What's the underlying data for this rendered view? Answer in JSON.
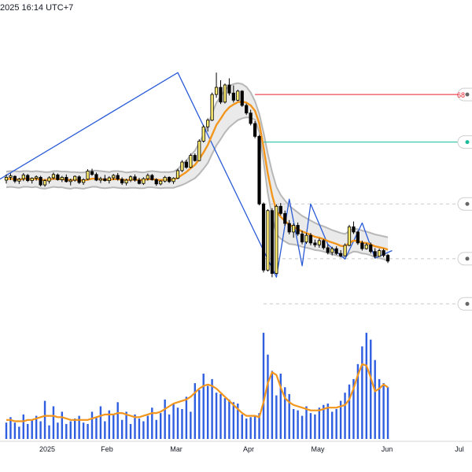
{
  "header": {
    "timestamp": "2025 16:14 UTC+7"
  },
  "colors": {
    "up_candle": "#fdeb6e",
    "down_candle": "#000000",
    "candle_outline": "#000000",
    "ma_line": "#f2961d",
    "band_fill": "#e3e3e3",
    "band_edge": "#b7b7b7",
    "zigzag": "#2a5bd7",
    "volume_bar": "#2f5fe0",
    "red_level": "#e8222d",
    "teal_level": "#1abc9c",
    "dashed_level": "#c8c8c8",
    "axis_text": "#131722"
  },
  "chart_data": [
    {
      "type": "candlestick",
      "title": "",
      "x_ticks": [
        "2025",
        "Feb",
        "Mar",
        "Apr",
        "May",
        "Jun",
        "Jul"
      ],
      "grid": false,
      "price_labels_visible": [
        "68"
      ],
      "ohlc": [
        [
          100,
          101.2,
          99.3,
          100.6
        ],
        [
          100.6,
          101.4,
          100.0,
          100.9
        ],
        [
          100.8,
          101.0,
          99.4,
          99.8
        ],
        [
          99.8,
          100.5,
          99.2,
          100.2
        ],
        [
          100.3,
          101.5,
          99.8,
          101.1
        ],
        [
          101.0,
          101.3,
          99.6,
          99.9
        ],
        [
          99.9,
          100.6,
          99.3,
          100.4
        ],
        [
          100.4,
          101.0,
          99.9,
          100.7
        ],
        [
          100.6,
          100.9,
          98.7,
          99.0
        ],
        [
          99.0,
          100.2,
          98.6,
          99.9
        ],
        [
          99.8,
          100.8,
          99.3,
          100.5
        ],
        [
          100.5,
          101.6,
          100.1,
          101.2
        ],
        [
          101.1,
          101.4,
          99.9,
          100.1
        ],
        [
          100.1,
          100.9,
          99.6,
          100.6
        ],
        [
          100.6,
          101.2,
          99.5,
          99.7
        ],
        [
          99.7,
          100.3,
          98.9,
          100.0
        ],
        [
          100.0,
          101.0,
          99.7,
          100.8
        ],
        [
          100.7,
          101.0,
          99.2,
          99.5
        ],
        [
          99.5,
          100.4,
          99.0,
          100.1
        ],
        [
          100.2,
          102.3,
          100.0,
          101.9
        ],
        [
          101.8,
          102.4,
          100.9,
          101.2
        ],
        [
          101.2,
          101.6,
          99.8,
          100.0
        ],
        [
          100.0,
          100.7,
          99.4,
          100.3
        ],
        [
          100.3,
          101.1,
          99.7,
          99.9
        ],
        [
          99.9,
          100.8,
          99.3,
          100.5
        ],
        [
          100.5,
          101.3,
          100.0,
          101.0
        ],
        [
          101.0,
          101.5,
          99.9,
          100.2
        ],
        [
          100.2,
          100.6,
          99.0,
          99.4
        ],
        [
          99.4,
          100.3,
          98.9,
          100.0
        ],
        [
          100.0,
          101.0,
          99.6,
          100.7
        ],
        [
          100.7,
          101.2,
          99.7,
          100.0
        ],
        [
          100.0,
          100.5,
          99.1,
          99.3
        ],
        [
          99.3,
          100.6,
          99.0,
          100.3
        ],
        [
          100.3,
          101.4,
          99.9,
          101.0
        ],
        [
          101.0,
          101.3,
          99.9,
          100.1
        ],
        [
          100.1,
          100.4,
          98.8,
          99.2
        ],
        [
          99.2,
          100.0,
          98.9,
          99.8
        ],
        [
          99.8,
          100.9,
          99.5,
          100.6
        ],
        [
          100.6,
          100.8,
          99.4,
          99.7
        ],
        [
          99.7,
          100.6,
          99.2,
          100.4
        ],
        [
          100.4,
          102.4,
          100.2,
          102.0
        ],
        [
          102.0,
          104.2,
          101.7,
          103.8
        ],
        [
          103.8,
          104.3,
          102.4,
          102.7
        ],
        [
          102.7,
          105.6,
          102.5,
          105.2
        ],
        [
          105.2,
          105.6,
          103.9,
          104.1
        ],
        [
          104.1,
          108.6,
          104.0,
          108.2
        ],
        [
          108.2,
          111.6,
          107.9,
          111.2
        ],
        [
          111.2,
          113.0,
          110.2,
          112.6
        ],
        [
          112.6,
          118.4,
          112.4,
          118.0
        ],
        [
          118.0,
          122.6,
          117.3,
          119.5
        ],
        [
          119.5,
          121.0,
          116.0,
          116.4
        ],
        [
          116.4,
          120.3,
          116.1,
          120.0
        ],
        [
          120.0,
          121.4,
          117.8,
          118.3
        ],
        [
          118.3,
          119.9,
          116.3,
          116.8
        ],
        [
          116.8,
          119.0,
          116.6,
          118.7
        ],
        [
          118.7,
          118.9,
          115.4,
          115.7
        ],
        [
          115.7,
          116.1,
          113.7,
          114.1
        ],
        [
          114.1,
          114.8,
          111.5,
          111.9
        ],
        [
          111.9,
          112.4,
          108.8,
          109.2
        ],
        [
          109.2,
          109.5,
          94.7,
          95.0
        ],
        [
          95.0,
          95.3,
          80.6,
          81.1
        ],
        [
          81.1,
          93.9,
          80.8,
          93.6
        ],
        [
          93.6,
          94.1,
          79.6,
          80.4
        ],
        [
          80.4,
          94.9,
          80.2,
          94.5
        ],
        [
          94.5,
          95.2,
          92.6,
          93.0
        ],
        [
          93.0,
          93.6,
          90.4,
          90.9
        ],
        [
          90.9,
          91.6,
          88.6,
          89.1
        ],
        [
          89.1,
          90.9,
          87.9,
          90.5
        ],
        [
          90.5,
          91.1,
          88.3,
          88.7
        ],
        [
          88.7,
          89.4,
          86.5,
          87.0
        ],
        [
          87.0,
          88.9,
          86.6,
          88.4
        ],
        [
          88.4,
          88.9,
          86.3,
          86.8
        ],
        [
          86.8,
          87.5,
          85.9,
          86.4
        ],
        [
          86.4,
          87.8,
          85.8,
          87.3
        ],
        [
          87.3,
          87.6,
          85.4,
          85.8
        ],
        [
          85.8,
          86.5,
          84.4,
          84.8
        ],
        [
          84.8,
          86.0,
          84.2,
          85.6
        ],
        [
          85.6,
          86.1,
          84.3,
          84.6
        ],
        [
          84.6,
          85.3,
          83.8,
          84.1
        ],
        [
          84.1,
          86.7,
          84.0,
          86.3
        ],
        [
          86.3,
          90.6,
          86.1,
          90.2
        ],
        [
          90.2,
          91.3,
          88.7,
          89.1
        ],
        [
          89.1,
          89.4,
          86.4,
          86.8
        ],
        [
          86.8,
          87.3,
          85.2,
          85.6
        ],
        [
          85.6,
          86.8,
          85.4,
          86.4
        ],
        [
          86.4,
          86.9,
          84.6,
          85.0
        ],
        [
          85.0,
          85.7,
          83.6,
          84.0
        ],
        [
          84.0,
          85.6,
          83.9,
          85.2
        ],
        [
          85.2,
          85.6,
          83.8,
          84.2
        ],
        [
          84.2,
          84.5,
          82.6,
          83.0
        ]
      ],
      "ma_curve": [
        100.2,
        100.3,
        100.2,
        100.1,
        100.3,
        100.3,
        100.2,
        100.3,
        100.1,
        100.0,
        100.1,
        100.3,
        100.2,
        100.2,
        100.1,
        100.0,
        100.1,
        100.0,
        99.9,
        100.1,
        100.3,
        100.3,
        100.2,
        100.1,
        100.1,
        100.2,
        100.2,
        100.1,
        100.0,
        100.1,
        100.1,
        100.0,
        100.0,
        100.2,
        100.2,
        100.1,
        100.0,
        100.1,
        100.1,
        100.1,
        100.5,
        101.1,
        101.7,
        102.5,
        103.2,
        104.4,
        105.8,
        107.4,
        109.5,
        111.6,
        112.9,
        114.3,
        115.3,
        115.9,
        116.4,
        116.5,
        116.3,
        115.7,
        114.6,
        111.9,
        106.9,
        101.4,
        96.9,
        93.5,
        92.3,
        91.4,
        90.6,
        90.2,
        89.7,
        89.2,
        88.9,
        88.5,
        88.1,
        87.9,
        87.6,
        87.2,
        86.9,
        86.6,
        86.2,
        86.1,
        86.8,
        87.3,
        87.2,
        86.9,
        86.8,
        86.5,
        86.1,
        85.9,
        85.7,
        85.4
      ],
      "band_upper": [
        101.8,
        101.9,
        101.9,
        101.8,
        101.9,
        101.9,
        101.8,
        101.9,
        101.8,
        101.7,
        101.7,
        101.9,
        101.9,
        101.8,
        101.8,
        101.7,
        101.7,
        101.6,
        101.6,
        101.8,
        102.0,
        102.0,
        101.9,
        101.8,
        101.7,
        101.9,
        101.9,
        101.8,
        101.6,
        101.7,
        101.8,
        101.7,
        101.6,
        101.8,
        101.9,
        101.8,
        101.7,
        101.7,
        101.7,
        101.8,
        102.3,
        103.3,
        104.1,
        105.2,
        106.2,
        107.8,
        109.6,
        111.6,
        114.0,
        116.3,
        117.6,
        118.9,
        119.8,
        120.2,
        120.4,
        120.2,
        119.6,
        118.4,
        116.6,
        113.9,
        110.0,
        105.6,
        101.7,
        98.6,
        96.9,
        95.7,
        94.6,
        93.9,
        93.2,
        92.5,
        92.0,
        91.5,
        91.0,
        90.6,
        90.3,
        89.9,
        89.5,
        89.2,
        88.9,
        88.7,
        89.3,
        89.8,
        89.7,
        89.4,
        89.2,
        88.9,
        88.6,
        88.4,
        88.2,
        88.0
      ],
      "band_lower": [
        98.5,
        98.6,
        98.5,
        98.4,
        98.6,
        98.6,
        98.5,
        98.6,
        98.3,
        98.2,
        98.4,
        98.6,
        98.5,
        98.5,
        98.3,
        98.2,
        98.4,
        98.3,
        98.2,
        98.4,
        98.6,
        98.6,
        98.4,
        98.3,
        98.4,
        98.5,
        98.4,
        98.3,
        98.3,
        98.4,
        98.4,
        98.3,
        98.3,
        98.5,
        98.5,
        98.4,
        98.3,
        98.4,
        98.4,
        98.4,
        98.7,
        99.0,
        99.4,
        99.9,
        100.4,
        101.3,
        102.4,
        103.6,
        105.5,
        107.3,
        108.6,
        110.0,
        111.1,
        111.9,
        112.6,
        113.0,
        113.2,
        113.1,
        112.7,
        110.1,
        104.0,
        97.3,
        92.3,
        88.6,
        87.7,
        87.1,
        86.6,
        86.5,
        86.3,
        86.0,
        85.8,
        85.6,
        85.3,
        85.2,
        85.0,
        84.7,
        84.4,
        84.2,
        83.9,
        83.8,
        84.6,
        85.0,
        84.9,
        84.6,
        84.5,
        84.2,
        83.8,
        83.6,
        83.4,
        83.0
      ],
      "zigzag": [
        [
          -3,
          99.4
        ],
        [
          40,
          122.6
        ],
        [
          63,
          79.6
        ],
        [
          66,
          96.0
        ],
        [
          69,
          82.0
        ],
        [
          71,
          95.0
        ],
        [
          75,
          86.5
        ],
        [
          79,
          83.4
        ],
        [
          83,
          91.0
        ],
        [
          86,
          83.6
        ],
        [
          90,
          85.2
        ]
      ],
      "levels": [
        {
          "value": 118.0,
          "style": "solid",
          "color": "red",
          "from_index": 58
        },
        {
          "value": 108.0,
          "style": "solid",
          "color": "teal",
          "from_index": 60
        },
        {
          "value": 95.0,
          "style": "dashed",
          "color": "gray",
          "from_index": 60
        },
        {
          "value": 83.5,
          "style": "dashed",
          "color": "gray",
          "from_index": 60
        },
        {
          "value": 74.0,
          "style": "dashed",
          "color": "gray",
          "from_index": 60
        }
      ]
    },
    {
      "type": "bar",
      "title": "",
      "series": [
        {
          "values": [
            12,
            16,
            12,
            9,
            18,
            11,
            14,
            17,
            13,
            28,
            10,
            24,
            12,
            20,
            11,
            13,
            15,
            17,
            12,
            11,
            20,
            16,
            24,
            13,
            21,
            18,
            27,
            14,
            20,
            11,
            18,
            15,
            13,
            17,
            23,
            14,
            19,
            29,
            18,
            26,
            23,
            22,
            31,
            20,
            41,
            36,
            48,
            39,
            44,
            34,
            33,
            30,
            29,
            27,
            26,
            18,
            15,
            16,
            17,
            19,
            78,
            62,
            50,
            32,
            48,
            38,
            33,
            22,
            21,
            17,
            24,
            19,
            18,
            23,
            25,
            26,
            20,
            22,
            28,
            34,
            40,
            44,
            55,
            68,
            78,
            73,
            58,
            44,
            41,
            38
          ]
        },
        {
          "values": [
            14,
            14,
            13,
            13,
            13,
            14,
            14,
            15,
            16,
            17,
            17,
            17,
            16,
            16,
            15,
            14,
            14,
            14,
            14,
            14,
            15,
            16,
            17,
            18,
            18,
            18,
            19,
            19,
            18,
            17,
            16,
            16,
            17,
            18,
            19,
            19,
            20,
            22,
            24,
            26,
            27,
            28,
            29,
            31,
            34,
            37,
            39,
            40,
            39,
            37,
            34,
            31,
            28,
            25,
            22,
            19,
            17,
            17,
            17,
            16,
            27,
            41,
            49,
            47,
            38,
            30,
            27,
            25,
            24,
            23,
            22,
            21,
            21,
            21,
            22,
            23,
            23,
            23,
            24,
            25,
            29,
            37,
            47,
            55,
            54,
            45,
            35,
            37,
            40,
            38
          ]
        }
      ]
    }
  ]
}
